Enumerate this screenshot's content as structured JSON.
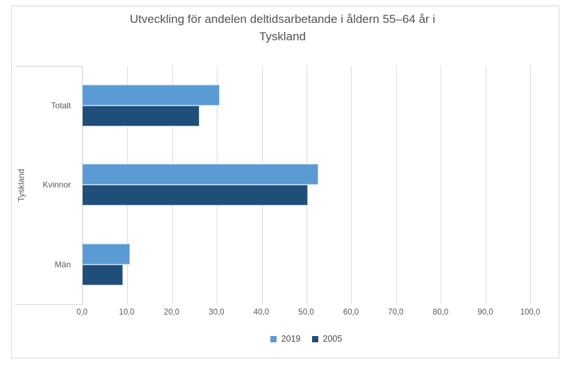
{
  "title_lines": [
    "Utveckling för andelen deltidsarbetande i åldern 55–64 år i",
    "Tyskland"
  ],
  "chart_data": {
    "type": "bar",
    "orientation": "horizontal",
    "title": "Utveckling för andelen deltidsarbetande i åldern 55–64 år i Tyskland",
    "axis_group_label": "Tyskland",
    "categories": [
      "Totalt",
      "Kvinnor",
      "Män"
    ],
    "series": [
      {
        "name": "2019",
        "color": "#5B9BD5",
        "values": [
          30.6,
          52.7,
          10.6
        ]
      },
      {
        "name": "2005",
        "color": "#1F4E79",
        "values": [
          26.1,
          50.3,
          9.0
        ]
      }
    ],
    "xlim": [
      0,
      100
    ],
    "x_tick_step": 10,
    "x_tick_labels": [
      "0,0",
      "10,0",
      "20,0",
      "30,0",
      "40,0",
      "50,0",
      "60,0",
      "70,0",
      "80,0",
      "90,0",
      "100,0"
    ],
    "grid": true,
    "gridline_color": "#DCDCDC",
    "text_color": "#595959",
    "legend_position": "bottom"
  }
}
